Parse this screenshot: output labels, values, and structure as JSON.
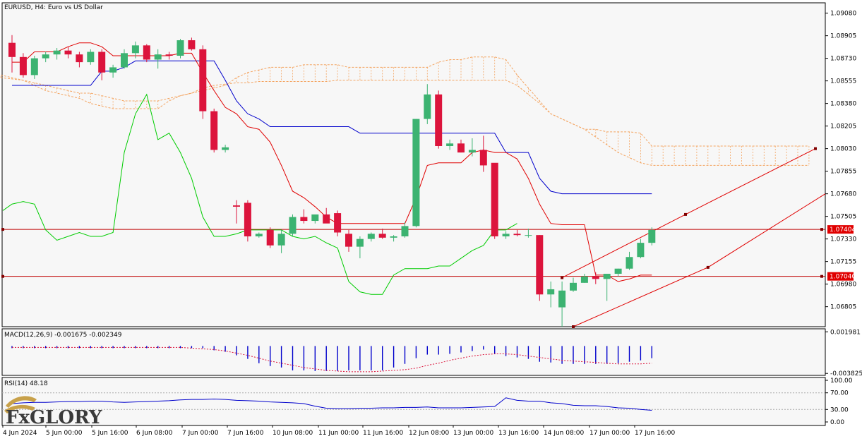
{
  "chart_data": [
    {
      "type": "candlestick",
      "title": "EURUSD, H4:  Euro vs US Dollar",
      "y_ticks": [
        "1.09080",
        "1.08905",
        "1.08730",
        "1.08555",
        "1.08380",
        "1.08205",
        "1.08030",
        "1.07855",
        "1.07680",
        "1.07505",
        "1.07330",
        "1.07155",
        "1.06980",
        "1.06805"
      ],
      "ylim": [
        1.0665,
        1.0916
      ],
      "x_labels": [
        "4 Jun 2024",
        "5 Jun 00:00",
        "5 Jun 16:00",
        "6 Jun 08:00",
        "7 Jun 00:00",
        "7 Jun 16:00",
        "10 Jun 08:00",
        "11 Jun 00:00",
        "11 Jun 16:00",
        "12 Jun 08:00",
        "13 Jun 00:00",
        "13 Jun 16:00",
        "14 Jun 08:00",
        "17 Jun 00:00",
        "17 Jun 16:00"
      ],
      "candles": [
        [
          1.0885,
          1.0891,
          1.0862,
          1.0874
        ],
        [
          1.0874,
          1.0877,
          1.0858,
          1.086
        ],
        [
          1.086,
          1.0875,
          1.0857,
          1.0873
        ],
        [
          1.0873,
          1.0878,
          1.087,
          1.0876
        ],
        [
          1.0876,
          1.0881,
          1.0872,
          1.0879
        ],
        [
          1.0879,
          1.0882,
          1.0873,
          1.0876
        ],
        [
          1.0876,
          1.0878,
          1.0866,
          1.087
        ],
        [
          1.087,
          1.088,
          1.0868,
          1.0878
        ],
        [
          1.0878,
          1.088,
          1.0856,
          1.0862
        ],
        [
          1.0862,
          1.0868,
          1.0858,
          1.0866
        ],
        [
          1.0866,
          1.088,
          1.0865,
          1.0877
        ],
        [
          1.0877,
          1.0886,
          1.0873,
          1.0883
        ],
        [
          1.0883,
          1.0884,
          1.087,
          1.0872
        ],
        [
          1.0872,
          1.088,
          1.0865,
          1.0876
        ],
        [
          1.0876,
          1.0878,
          1.0872,
          1.0875
        ],
        [
          1.0875,
          1.0888,
          1.0873,
          1.0887
        ],
        [
          1.0887,
          1.0889,
          1.0879,
          1.088
        ],
        [
          1.088,
          1.0883,
          1.0826,
          1.0832
        ],
        [
          1.0832,
          1.0834,
          1.08,
          1.0802
        ],
        [
          1.0802,
          1.0806,
          1.08,
          1.0804
        ],
        [
          1.0759,
          1.0763,
          1.0745,
          1.0758
        ],
        [
          1.0761,
          1.0763,
          1.0731,
          1.0735
        ],
        [
          1.0735,
          1.0738,
          1.0734,
          1.0737
        ],
        [
          1.074,
          1.0742,
          1.0726,
          1.0728
        ],
        [
          1.0728,
          1.074,
          1.0722,
          1.0737
        ],
        [
          1.0737,
          1.0752,
          1.0735,
          1.075
        ],
        [
          1.075,
          1.0756,
          1.0745,
          1.0747
        ],
        [
          1.0747,
          1.075,
          1.0745,
          1.0752
        ],
        [
          1.0752,
          1.0757,
          1.0747,
          1.0745
        ],
        [
          1.0753,
          1.0755,
          1.0735,
          1.0738
        ],
        [
          1.0737,
          1.074,
          1.0723,
          1.0727
        ],
        [
          1.0727,
          1.0735,
          1.0718,
          1.0733
        ],
        [
          1.0733,
          1.0738,
          1.0731,
          1.0737
        ],
        [
          1.0737,
          1.0741,
          1.0733,
          1.0734
        ],
        [
          1.0734,
          1.0736,
          1.0731,
          1.0735
        ],
        [
          1.0735,
          1.0746,
          1.0734,
          1.0743
        ],
        [
          1.0743,
          1.0826,
          1.0742,
          1.0826
        ],
        [
          1.0826,
          1.0853,
          1.0822,
          1.0845
        ],
        [
          1.0845,
          1.0848,
          1.0803,
          1.0805
        ],
        [
          1.0805,
          1.081,
          1.0802,
          1.0807
        ],
        [
          1.0807,
          1.081,
          1.08,
          1.08
        ],
        [
          1.08,
          1.0811,
          1.0797,
          1.0802
        ],
        [
          1.0802,
          1.0813,
          1.0785,
          1.079
        ],
        [
          1.0792,
          1.0791,
          1.0733,
          1.0735
        ],
        [
          1.0735,
          1.0739,
          1.0733,
          1.0737
        ],
        [
          1.0737,
          1.074,
          1.0735,
          1.0736
        ],
        [
          1.0736,
          1.0741,
          1.0734,
          1.0736
        ],
        [
          1.0736,
          1.0736,
          1.0685,
          1.069
        ],
        [
          1.069,
          1.07,
          1.068,
          1.0694
        ],
        [
          1.068,
          1.07,
          1.0665,
          1.0693
        ],
        [
          1.0693,
          1.0703,
          1.0692,
          1.0699
        ],
        [
          1.0699,
          1.0706,
          1.0699,
          1.0704
        ],
        [
          1.0704,
          1.0707,
          1.0698,
          1.0702
        ],
        [
          1.0702,
          1.0704,
          1.0685,
          1.0706
        ],
        [
          1.0706,
          1.071,
          1.0704,
          1.071
        ],
        [
          1.071,
          1.0723,
          1.0709,
          1.0719
        ],
        [
          1.0719,
          1.0733,
          1.0718,
          1.073
        ],
        [
          1.073,
          1.0742,
          1.0728,
          1.074
        ]
      ],
      "price_lines": [
        {
          "value": 1.07404,
          "label": "1.07404"
        },
        {
          "value": 1.0704,
          "label": "1.07040"
        }
      ]
    },
    {
      "type": "histogram",
      "title": "MACD(12,26,9) -0.001675 -0.002349",
      "y_ticks": [
        "0.001981",
        "-0.003825"
      ],
      "ylim": [
        -0.0041,
        0.0024
      ]
    },
    {
      "type": "line",
      "title": "RSI(14) 48.18",
      "y_ticks": [
        "100.00",
        "70.00",
        "30.00",
        "0.00"
      ],
      "ylim": [
        0,
        100
      ],
      "levels": [
        70,
        30
      ]
    }
  ],
  "colors": {
    "bull": "#3cb371",
    "bear": "#dc143c",
    "tenkan": "#e00000",
    "kijun": "#0000cc",
    "chikou": "#00cc00",
    "cloud": "#f4a460",
    "macd": "#0000cc",
    "signal": "#dc143c",
    "rsi": "#0000cc",
    "hline": "#c00000"
  },
  "logo": {
    "text": "FxGLORY"
  }
}
